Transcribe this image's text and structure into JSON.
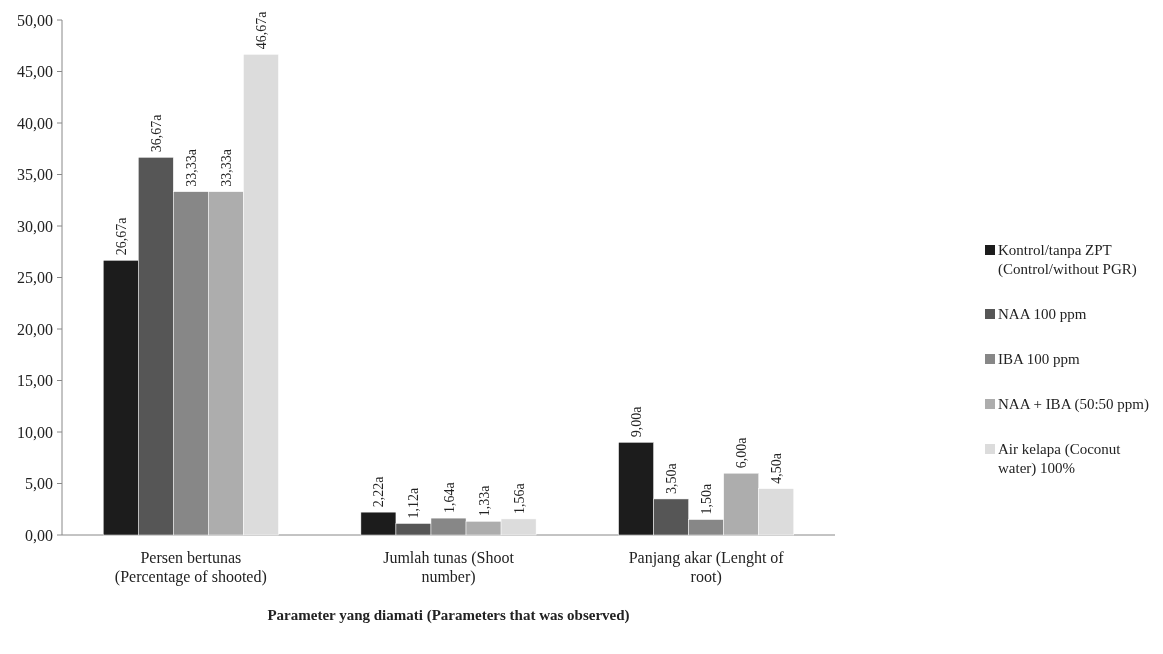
{
  "chart_data": {
    "type": "bar",
    "xlabel": "Parameter yang diamati (Parameters that was observed)",
    "categories": [
      "Persen bertunas (Percentage of shooted)",
      "Jumlah tunas (Shoot number)",
      "Panjang akar (Lenght of root)"
    ],
    "series": [
      {
        "name": "Kontrol/tanpa ZPT (Control/without PGR)",
        "color": "#1c1c1c",
        "values": [
          26.67,
          2.22,
          9.0
        ],
        "value_labels": [
          "26,67a",
          "2,22a",
          "9,00a"
        ]
      },
      {
        "name": "NAA 100 ppm",
        "color": "#565656",
        "values": [
          36.67,
          1.12,
          3.5
        ],
        "value_labels": [
          "36,67a",
          "1,12a",
          "3,50a"
        ]
      },
      {
        "name": "IBA 100 ppm",
        "color": "#878787",
        "values": [
          33.33,
          1.64,
          1.5
        ],
        "value_labels": [
          "33,33a",
          "1,64a",
          "1,50a"
        ]
      },
      {
        "name": "NAA + IBA (50:50 ppm)",
        "color": "#adadad",
        "values": [
          33.33,
          1.33,
          6.0
        ],
        "value_labels": [
          "33,33a",
          "1,33a",
          "6,00a"
        ]
      },
      {
        "name": "Air kelapa (Coconut water) 100%",
        "color": "#dcdcdc",
        "values": [
          46.67,
          1.56,
          4.5
        ],
        "value_labels": [
          "46,67a",
          "1,56a",
          "4,50a"
        ]
      }
    ],
    "ylim": [
      0,
      50
    ],
    "yticks": [
      {
        "value": 0,
        "label": "0,00"
      },
      {
        "value": 5,
        "label": "5,00"
      },
      {
        "value": 10,
        "label": "10,00"
      },
      {
        "value": 15,
        "label": "15,00"
      },
      {
        "value": 20,
        "label": "20,00"
      },
      {
        "value": 25,
        "label": "25,00"
      },
      {
        "value": 30,
        "label": "30,00"
      },
      {
        "value": 35,
        "label": "35,00"
      },
      {
        "value": 40,
        "label": "40,00"
      },
      {
        "value": 45,
        "label": "45,00"
      },
      {
        "value": 50,
        "label": "50,00"
      }
    ],
    "grid": false,
    "legend": "right"
  }
}
